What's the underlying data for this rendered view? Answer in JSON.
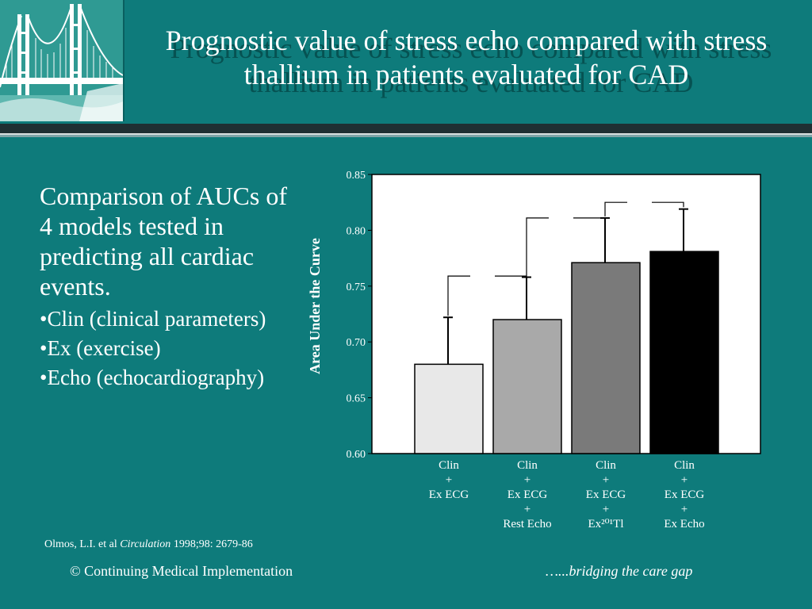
{
  "title": "Prognostic value of stress echo compared with stress thallium in patients evaluated for CAD",
  "bullets": {
    "lead": "Comparison of AUCs of 4 models tested in predicting all cardiac events.",
    "items": [
      "•Clin (clinical parameters)",
      "•Ex (exercise)",
      "•Echo (echocardiography)"
    ]
  },
  "citation": {
    "authors": "Olmos, L.I. et al ",
    "journal": "Circulation",
    "ref": " 1998;98: 2679-86"
  },
  "footer": {
    "left": "© Continuing Medical Implementation",
    "right": "…...bridging the care gap"
  },
  "colors": {
    "background": "#0e7b7b",
    "bars": [
      "#e8e8e8",
      "#a9a9a9",
      "#7a7a7a",
      "#000000"
    ]
  },
  "chart_data": {
    "type": "bar",
    "ylabel": "Area Under the Curve",
    "ylim": [
      0.6,
      0.85
    ],
    "yticks": [
      "0.85",
      "0.80",
      "0.75",
      "0.70",
      "0.65",
      "0.60"
    ],
    "categories": [
      [
        "Clin",
        "+",
        "Ex ECG"
      ],
      [
        "Clin",
        "+",
        "Ex ECG",
        "+",
        "Rest Echo"
      ],
      [
        "Clin",
        "+",
        "Ex ECG",
        "+",
        "Ex²⁰¹Tl"
      ],
      [
        "Clin",
        "+",
        "Ex ECG",
        "+",
        "Ex Echo"
      ]
    ],
    "values": [
      0.68,
      0.72,
      0.771,
      0.781
    ],
    "error_upper": [
      0.722,
      0.758,
      0.811,
      0.819
    ]
  }
}
